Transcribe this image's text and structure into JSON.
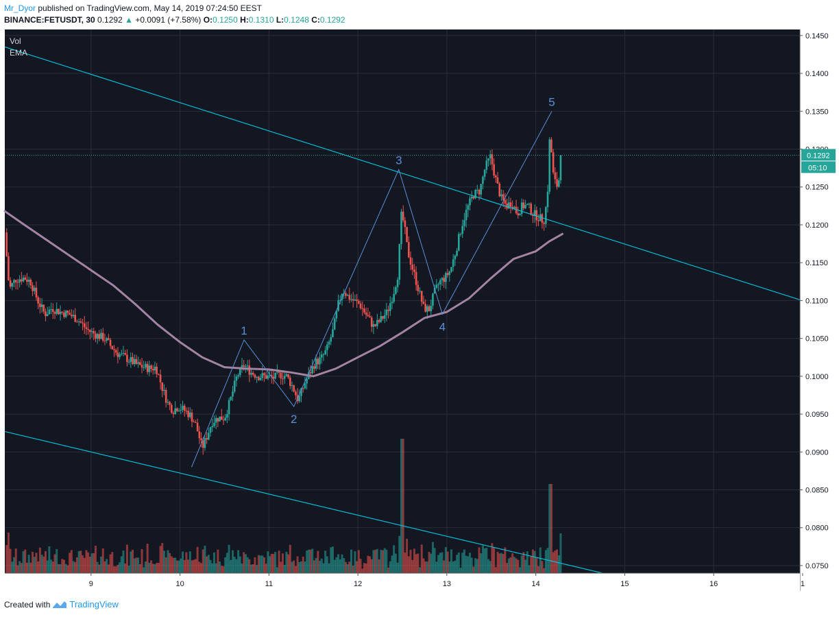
{
  "header": {
    "author": "Mr_Dyor",
    "published": "published on TradingView.com, May 14, 2019 07:24:50 EEST",
    "symbol": "BINANCE:FETUSDT, 30",
    "last": "0.1292",
    "change": "+0.0091 (+7.58%)",
    "o_label": "O:",
    "o": "0.1250",
    "h_label": "H:",
    "h": "0.1310",
    "l_label": "L:",
    "l": "0.1248",
    "c_label": "C:",
    "c": "0.1292"
  },
  "footer": {
    "created": "Created with",
    "brand": "TradingView"
  },
  "colors": {
    "background": "#131722",
    "grid": "#2a2e39",
    "axis_bg": "#ffffff",
    "up": "#26a69a",
    "down": "#ef5350",
    "ema": "#a583a3",
    "trendline": "#00bcd4",
    "wave": "#5b8fd6",
    "last_price": "#26a69a"
  },
  "chart_data": {
    "type": "candlestick",
    "indicators": [
      "Vol",
      "EMA"
    ],
    "x_ticks": [
      "9",
      "10",
      "11",
      "12",
      "13",
      "14",
      "15",
      "16",
      "1"
    ],
    "y_ticks": [
      "0.0750",
      "0.0800",
      "0.0850",
      "0.0900",
      "0.0950",
      "0.1000",
      "0.1050",
      "0.1100",
      "0.1150",
      "0.1200",
      "0.1250",
      "0.1300",
      "0.1350",
      "0.1400",
      "0.1450"
    ],
    "ylim": [
      0.074,
      0.1458
    ],
    "xlim": [
      8.03,
      16.97
    ],
    "last_price_label": "0.1292",
    "countdown_label": "05:10",
    "price_path": [
      [
        8.03,
        0.119
      ],
      [
        8.08,
        0.1115
      ],
      [
        8.15,
        0.1128
      ],
      [
        8.25,
        0.113
      ],
      [
        8.32,
        0.1125
      ],
      [
        8.4,
        0.11
      ],
      [
        8.48,
        0.1082
      ],
      [
        8.56,
        0.109
      ],
      [
        8.65,
        0.1085
      ],
      [
        8.75,
        0.1082
      ],
      [
        8.85,
        0.1075
      ],
      [
        8.95,
        0.1062
      ],
      [
        9.05,
        0.1055
      ],
      [
        9.15,
        0.105
      ],
      [
        9.22,
        0.104
      ],
      [
        9.3,
        0.103
      ],
      [
        9.38,
        0.1025
      ],
      [
        9.45,
        0.102
      ],
      [
        9.52,
        0.1015
      ],
      [
        9.6,
        0.1012
      ],
      [
        9.67,
        0.101
      ],
      [
        9.73,
        0.1012
      ],
      [
        9.8,
        0.0985
      ],
      [
        9.86,
        0.0965
      ],
      [
        9.92,
        0.0955
      ],
      [
        9.98,
        0.096
      ],
      [
        10.05,
        0.0955
      ],
      [
        10.12,
        0.0948
      ],
      [
        10.18,
        0.0935
      ],
      [
        10.25,
        0.0905
      ],
      [
        10.3,
        0.092
      ],
      [
        10.36,
        0.094
      ],
      [
        10.43,
        0.0945
      ],
      [
        10.5,
        0.0945
      ],
      [
        10.57,
        0.097
      ],
      [
        10.64,
        0.1
      ],
      [
        10.72,
        0.1015
      ],
      [
        10.8,
        0.1005
      ],
      [
        10.88,
        0.1
      ],
      [
        10.96,
        0.1
      ],
      [
        11.05,
        0.0998
      ],
      [
        11.13,
        0.1002
      ],
      [
        11.2,
        0.1
      ],
      [
        11.27,
        0.0985
      ],
      [
        11.33,
        0.0968
      ],
      [
        11.4,
        0.099
      ],
      [
        11.46,
        0.1005
      ],
      [
        11.52,
        0.1018
      ],
      [
        11.58,
        0.1022
      ],
      [
        11.65,
        0.1035
      ],
      [
        11.72,
        0.106
      ],
      [
        11.78,
        0.1095
      ],
      [
        11.83,
        0.1115
      ],
      [
        11.89,
        0.1105
      ],
      [
        11.95,
        0.11
      ],
      [
        12.02,
        0.1095
      ],
      [
        12.1,
        0.108
      ],
      [
        12.18,
        0.1065
      ],
      [
        12.26,
        0.1075
      ],
      [
        12.33,
        0.1085
      ],
      [
        12.4,
        0.111
      ],
      [
        12.45,
        0.1135
      ],
      [
        12.49,
        0.1215
      ],
      [
        12.52,
        0.12
      ],
      [
        12.56,
        0.1165
      ],
      [
        12.62,
        0.114
      ],
      [
        12.68,
        0.1115
      ],
      [
        12.74,
        0.109
      ],
      [
        12.8,
        0.1088
      ],
      [
        12.86,
        0.111
      ],
      [
        12.92,
        0.1125
      ],
      [
        12.98,
        0.113
      ],
      [
        13.04,
        0.114
      ],
      [
        13.1,
        0.1165
      ],
      [
        13.17,
        0.12
      ],
      [
        13.23,
        0.1222
      ],
      [
        13.3,
        0.124
      ],
      [
        13.37,
        0.1245
      ],
      [
        13.43,
        0.1275
      ],
      [
        13.49,
        0.129
      ],
      [
        13.55,
        0.126
      ],
      [
        13.61,
        0.1235
      ],
      [
        13.67,
        0.1225
      ],
      [
        13.73,
        0.123
      ],
      [
        13.79,
        0.1215
      ],
      [
        13.85,
        0.1225
      ],
      [
        13.91,
        0.1225
      ],
      [
        13.97,
        0.1215
      ],
      [
        14.03,
        0.121
      ],
      [
        14.09,
        0.1205
      ],
      [
        14.13,
        0.1235
      ],
      [
        14.16,
        0.1325
      ],
      [
        14.19,
        0.127
      ],
      [
        14.22,
        0.1255
      ],
      [
        14.25,
        0.125
      ],
      [
        14.29,
        0.1292
      ]
    ],
    "ema_path": [
      [
        8.03,
        0.1218
      ],
      [
        8.25,
        0.12
      ],
      [
        8.5,
        0.118
      ],
      [
        8.75,
        0.116
      ],
      [
        9.0,
        0.114
      ],
      [
        9.25,
        0.112
      ],
      [
        9.5,
        0.1095
      ],
      [
        9.75,
        0.1068
      ],
      [
        10.0,
        0.1045
      ],
      [
        10.25,
        0.1025
      ],
      [
        10.5,
        0.1012
      ],
      [
        10.75,
        0.101
      ],
      [
        11.0,
        0.1009
      ],
      [
        11.25,
        0.1005
      ],
      [
        11.5,
        0.1
      ],
      [
        11.75,
        0.101
      ],
      [
        12.0,
        0.1025
      ],
      [
        12.25,
        0.104
      ],
      [
        12.5,
        0.1058
      ],
      [
        12.75,
        0.1077
      ],
      [
        13.0,
        0.1085
      ],
      [
        13.25,
        0.1103
      ],
      [
        13.5,
        0.113
      ],
      [
        13.75,
        0.1155
      ],
      [
        14.0,
        0.1165
      ],
      [
        14.15,
        0.1178
      ],
      [
        14.3,
        0.1188
      ]
    ],
    "trendlines": [
      {
        "from": [
          8.03,
          0.1435
        ],
        "to": [
          16.97,
          0.1101
        ]
      },
      {
        "from": [
          8.03,
          0.0927
        ],
        "to": [
          14.75,
          0.074
        ]
      }
    ],
    "wave_points": [
      {
        "label": "",
        "x": 10.13,
        "y": 0.088
      },
      {
        "label": "1",
        "x": 10.72,
        "y": 0.1048
      },
      {
        "label": "2",
        "x": 11.28,
        "y": 0.096
      },
      {
        "label": "3",
        "x": 12.46,
        "y": 0.1273
      },
      {
        "label": "4",
        "x": 12.95,
        "y": 0.1082
      },
      {
        "label": "5",
        "x": 14.18,
        "y": 0.135
      }
    ]
  }
}
